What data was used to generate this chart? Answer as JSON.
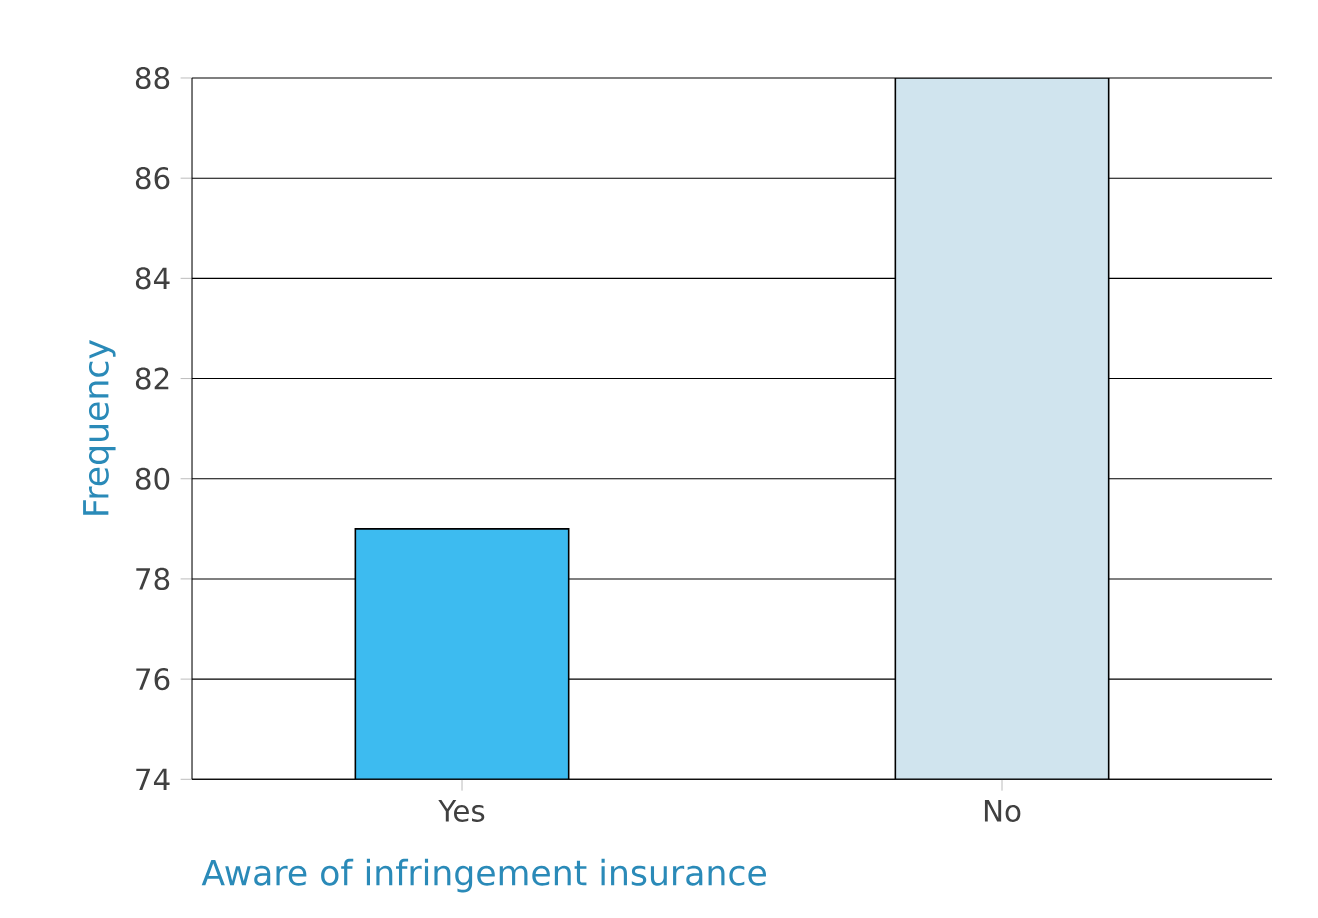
{
  "chart_data": {
    "type": "bar",
    "xlabel": "Aware of infringement insurance",
    "ylabel": "Frequency",
    "categories": [
      "Yes",
      "No"
    ],
    "values": [
      79,
      88
    ],
    "colors": [
      "#3dbbf0",
      "#d0e4ee"
    ],
    "ylim": [
      74,
      88
    ],
    "yticks": [
      74,
      76,
      78,
      80,
      82,
      84,
      86,
      88
    ],
    "grid": "y"
  }
}
